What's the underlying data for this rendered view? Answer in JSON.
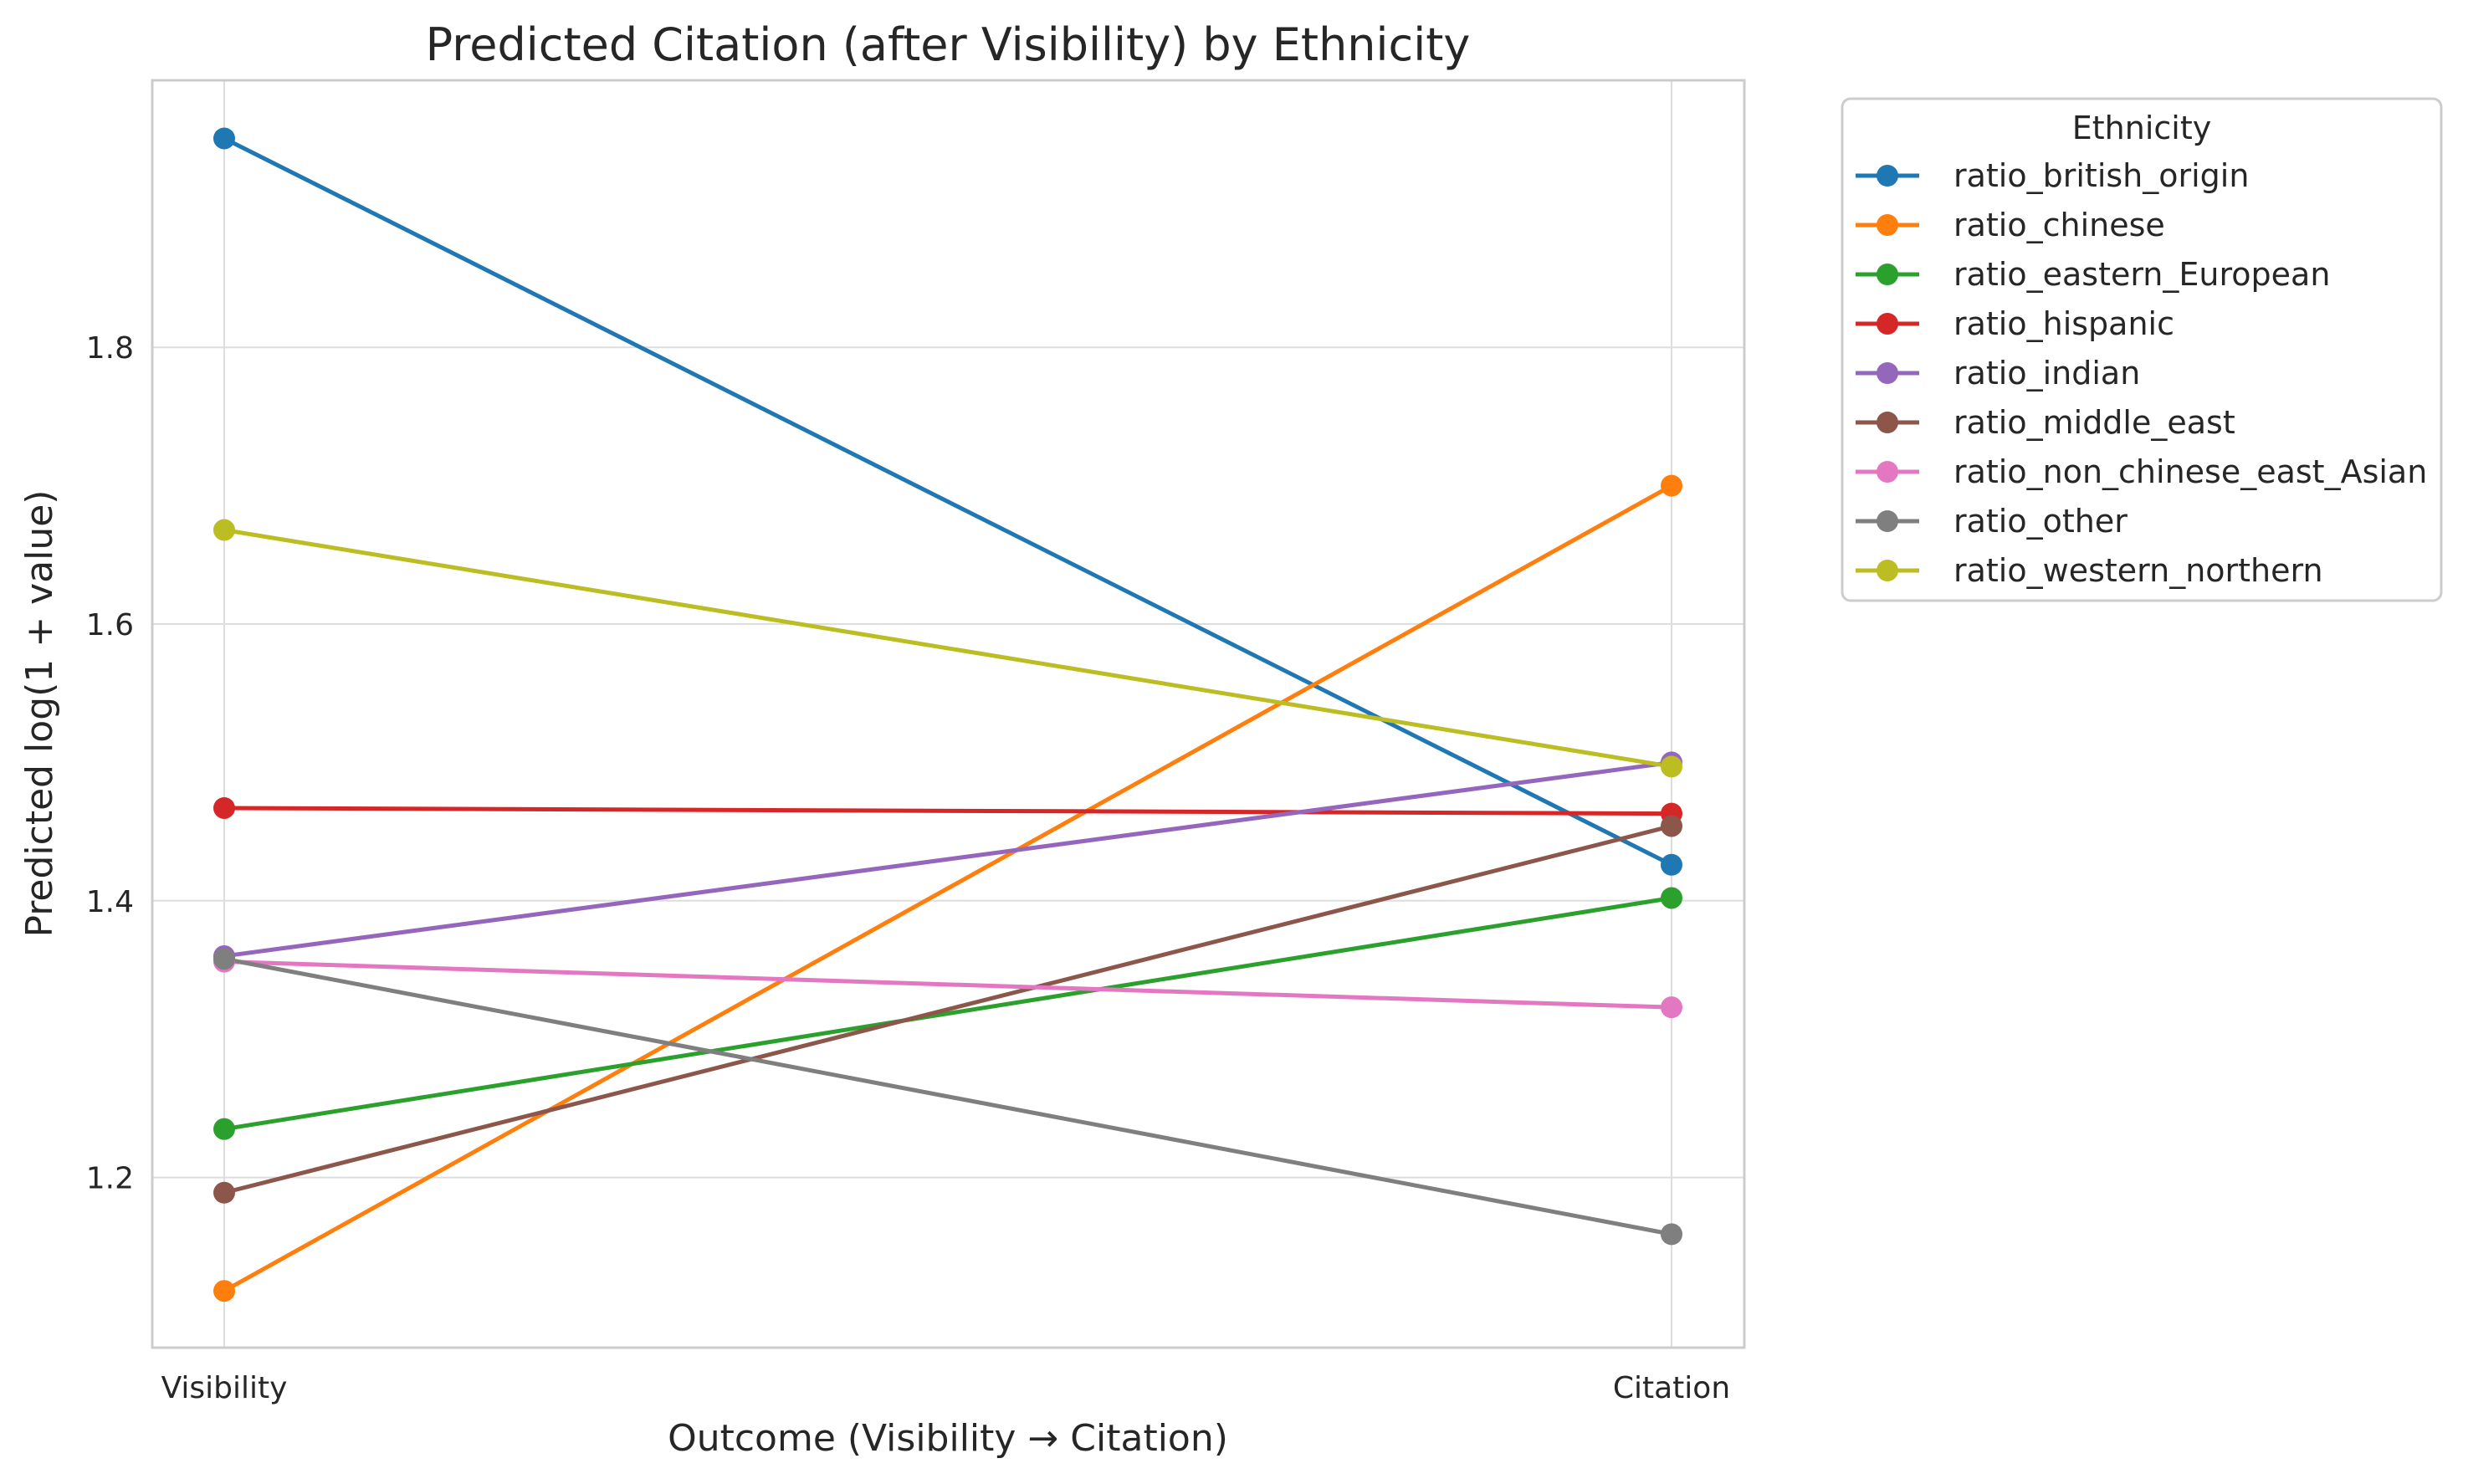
{
  "chart_data": {
    "type": "line",
    "title": "Predicted Citation (after Visibility) by Ethnicity",
    "xlabel": "Outcome (Visibility → Citation)",
    "ylabel": "Predicted log(1 + value)",
    "categories": [
      "Visibility",
      "Citation"
    ],
    "ylim": [
      1.077,
      1.993
    ],
    "yticks": [
      1.2,
      1.4,
      1.6,
      1.8
    ],
    "ytick_labels": [
      "1.2",
      "1.4",
      "1.6",
      "1.8"
    ],
    "grid": true,
    "legend": {
      "title": "Ethnicity",
      "placement": "outside-right-top"
    },
    "series": [
      {
        "name": "ratio_british_origin",
        "color": "#1f77b4",
        "values": [
          1.951,
          1.426
        ]
      },
      {
        "name": "ratio_chinese",
        "color": "#ff7f0e",
        "values": [
          1.118,
          1.7
        ]
      },
      {
        "name": "ratio_eastern_European",
        "color": "#2ca02c",
        "values": [
          1.235,
          1.402
        ]
      },
      {
        "name": "ratio_hispanic",
        "color": "#d62728",
        "values": [
          1.467,
          1.463
        ]
      },
      {
        "name": "ratio_indian",
        "color": "#9467bd",
        "values": [
          1.36,
          1.5
        ]
      },
      {
        "name": "ratio_middle_east",
        "color": "#8c564b",
        "values": [
          1.189,
          1.454
        ]
      },
      {
        "name": "ratio_non_chinese_east_Asian",
        "color": "#e377c2",
        "values": [
          1.356,
          1.323
        ]
      },
      {
        "name": "ratio_other",
        "color": "#7f7f7f",
        "values": [
          1.358,
          1.159
        ]
      },
      {
        "name": "ratio_western_northern",
        "color": "#bcbd22",
        "values": [
          1.668,
          1.497
        ]
      }
    ]
  }
}
